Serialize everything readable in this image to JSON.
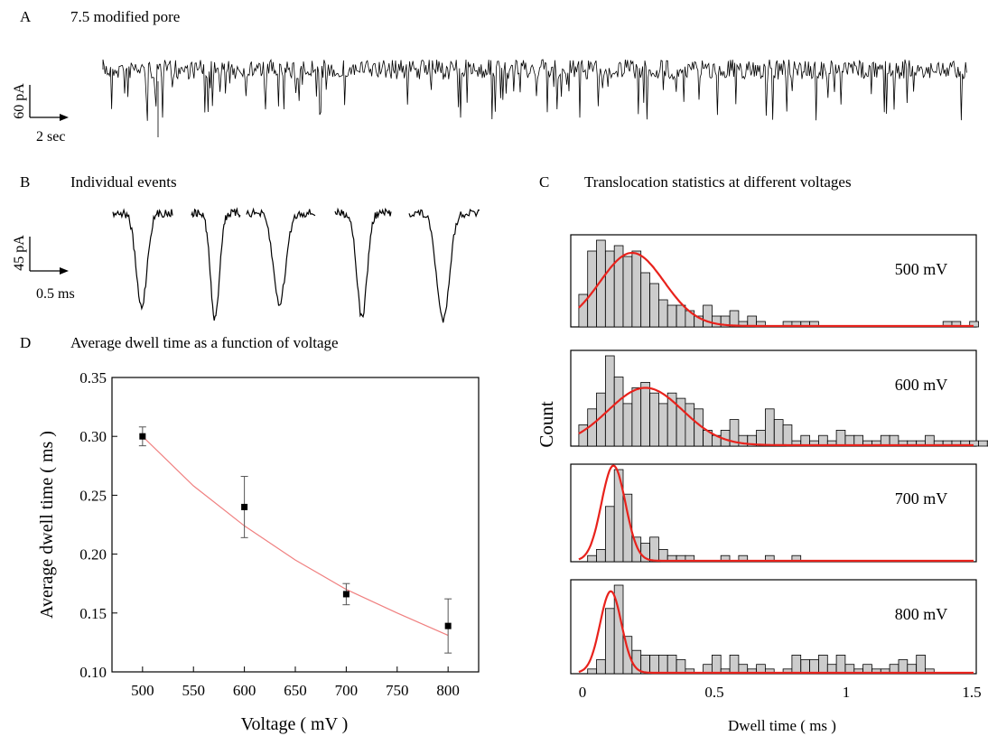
{
  "panel_a": {
    "letter": "A",
    "title": "7.5 modified pore",
    "scale_y": "60 pA",
    "scale_x": "2 sec"
  },
  "panel_b": {
    "letter": "B",
    "title": "Individual events",
    "scale_y": "45 pA",
    "scale_x": "0.5 ms"
  },
  "panel_c": {
    "letter": "C",
    "title": "Translocation statistics at different voltages",
    "ylabel": "Count",
    "xlabel": "Dwell time ( ms )",
    "x_ticks": [
      "0",
      "0.5",
      "1",
      "1.5"
    ]
  },
  "panel_d": {
    "letter": "D",
    "title": "Average dwell time as a function of voltage",
    "ylabel": "Average dwell time ( ms )",
    "xlabel": "Voltage ( mV )"
  },
  "colors": {
    "trace": "#000000",
    "fit": "#e8221c",
    "bar_fill": "#cccccc",
    "d_fit": "#f08080"
  },
  "chart_data": [
    {
      "type": "scatter",
      "panel": "D",
      "title": "Average dwell time as a function of voltage",
      "xlabel": "Voltage ( mV )",
      "ylabel": "Average dwell time ( ms )",
      "xlim": [
        470,
        830
      ],
      "ylim": [
        0.1,
        0.35
      ],
      "x_ticks": [
        500,
        550,
        600,
        650,
        700,
        750,
        800
      ],
      "y_ticks": [
        0.1,
        0.15,
        0.2,
        0.25,
        0.3,
        0.35
      ],
      "x_tick_labels": [
        "500",
        "550",
        "600",
        "650",
        "700",
        "750",
        "800"
      ],
      "y_tick_labels": [
        "0.10",
        "0.15",
        "0.20",
        "0.25",
        "0.30",
        "0.35"
      ],
      "points": [
        {
          "x": 500,
          "y": 0.3,
          "err": 0.008
        },
        {
          "x": 600,
          "y": 0.24,
          "err": 0.026
        },
        {
          "x": 700,
          "y": 0.166,
          "err": 0.009
        },
        {
          "x": 800,
          "y": 0.139,
          "err": 0.023
        }
      ],
      "fit": {
        "x": [
          500,
          550,
          600,
          650,
          700,
          750,
          800
        ],
        "y": [
          0.3,
          0.258,
          0.224,
          0.195,
          0.17,
          0.15,
          0.131
        ]
      }
    },
    {
      "type": "bar",
      "panel": "C",
      "xlabel": "Dwell time ( ms )",
      "ylabel": "Count",
      "xlim": [
        -0.03,
        1.49
      ],
      "bin_width": 0.0333,
      "histograms": [
        {
          "label": "500 mV",
          "counts": [
            6,
            14,
            16,
            14,
            15,
            13,
            14,
            10,
            8,
            5,
            4,
            4,
            3,
            2,
            4,
            2,
            2,
            3,
            1,
            2,
            1,
            0,
            0,
            1,
            1,
            1,
            1,
            0,
            0,
            0,
            0,
            0,
            0,
            0,
            0,
            0,
            0,
            0,
            0,
            0,
            0,
            1,
            1,
            0,
            1,
            0,
            0,
            0,
            1,
            1,
            0,
            1,
            0,
            1,
            0
          ],
          "fit": {
            "amp": 13.5,
            "mu": 0.2,
            "sigma": 0.12
          }
        },
        {
          "label": "600 mV",
          "counts": [
            4,
            7,
            10,
            17,
            13,
            8,
            11,
            12,
            10,
            8,
            10,
            9,
            8,
            7,
            3,
            2,
            3,
            5,
            2,
            2,
            3,
            7,
            5,
            4,
            1,
            2,
            1,
            2,
            1,
            3,
            2,
            2,
            1,
            1,
            2,
            2,
            1,
            1,
            1,
            2,
            1,
            1,
            1,
            1,
            1,
            1,
            1,
            0,
            1,
            1,
            1,
            0,
            0,
            0,
            1
          ],
          "fit": {
            "amp": 10.8,
            "mu": 0.25,
            "sigma": 0.14
          }
        },
        {
          "label": "700 mV",
          "counts": [
            0,
            1,
            2,
            9,
            15,
            11,
            4,
            3,
            4,
            2,
            1,
            1,
            1,
            0,
            0,
            0,
            1,
            0,
            1,
            0,
            0,
            1,
            0,
            0,
            1,
            0,
            0,
            0,
            0,
            0,
            0,
            0,
            0,
            0,
            0,
            0,
            0,
            0,
            0,
            0,
            0,
            0,
            0,
            0,
            0,
            0,
            0,
            0,
            0,
            0,
            0,
            0,
            0,
            0,
            0
          ],
          "fit": {
            "amp": 15.5,
            "mu": 0.13,
            "sigma": 0.045
          }
        },
        {
          "label": "800 mV",
          "counts": [
            0,
            1,
            3,
            14,
            19,
            8,
            5,
            4,
            4,
            4,
            4,
            3,
            1,
            0,
            2,
            4,
            1,
            4,
            2,
            1,
            2,
            1,
            0,
            1,
            4,
            3,
            3,
            4,
            2,
            4,
            2,
            1,
            2,
            1,
            1,
            2,
            3,
            2,
            4,
            1,
            0,
            0,
            0,
            0,
            0,
            0,
            0,
            0,
            0,
            0,
            0,
            0,
            0,
            0,
            0,
            1
          ],
          "fit": {
            "amp": 17.5,
            "mu": 0.12,
            "sigma": 0.04
          }
        }
      ]
    }
  ]
}
